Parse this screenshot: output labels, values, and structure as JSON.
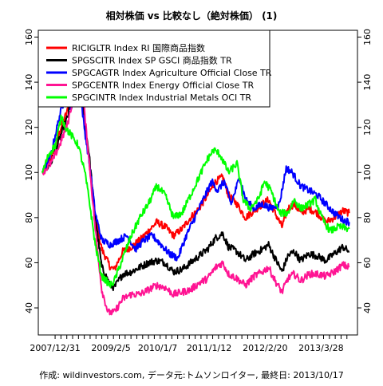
{
  "chart_data": {
    "type": "line",
    "title": "相対株価 vs 比較なし（絶対株価） (1)",
    "caption": "作成: wildinvestors.com, データ元:トムソンロイター, 最終日: 2013/10/17",
    "ylim": [
      28,
      163
    ],
    "y_ticks": [
      40,
      60,
      80,
      100,
      120,
      140,
      160
    ],
    "y_ticks_right": [
      40,
      60,
      80,
      100,
      120,
      140,
      160
    ],
    "x_tick_labels": [
      "2007/12/31",
      "2009/2/5",
      "2010/1/7",
      "2011/1/12",
      "2012/2/20",
      "2013/3/28"
    ],
    "x_range": [
      "2007-09-01",
      "2013-12-15"
    ],
    "x_tick_dates": [
      "2007-12-31",
      "2009-02-05",
      "2010-01-07",
      "2011-01-12",
      "2012-02-20",
      "2013-03-28"
    ],
    "legend_position": "top-left",
    "grid": false,
    "series": [
      {
        "name": "RICIGLTR Index RI 国際商品指数",
        "color": "#ff0000",
        "points": [
          [
            "2007-10-01",
            100
          ],
          [
            "2007-12-01",
            106
          ],
          [
            "2008-02-01",
            118
          ],
          [
            "2008-04-01",
            128
          ],
          [
            "2008-05-15",
            138
          ],
          [
            "2008-07-01",
            140
          ],
          [
            "2008-08-01",
            122
          ],
          [
            "2008-09-01",
            105
          ],
          [
            "2008-10-15",
            80
          ],
          [
            "2008-12-01",
            66
          ],
          [
            "2009-02-01",
            58
          ],
          [
            "2009-03-01",
            57
          ],
          [
            "2009-05-01",
            65
          ],
          [
            "2009-07-01",
            67
          ],
          [
            "2009-09-01",
            70
          ],
          [
            "2009-11-01",
            74
          ],
          [
            "2010-01-01",
            78
          ],
          [
            "2010-03-01",
            76
          ],
          [
            "2010-05-01",
            72
          ],
          [
            "2010-07-01",
            75
          ],
          [
            "2010-09-01",
            80
          ],
          [
            "2010-11-01",
            84
          ],
          [
            "2011-01-01",
            90
          ],
          [
            "2011-03-01",
            96
          ],
          [
            "2011-04-20",
            98
          ],
          [
            "2011-06-01",
            90
          ],
          [
            "2011-08-01",
            86
          ],
          [
            "2011-10-01",
            80
          ],
          [
            "2011-12-01",
            83
          ],
          [
            "2012-02-01",
            86
          ],
          [
            "2012-03-15",
            88
          ],
          [
            "2012-05-01",
            82
          ],
          [
            "2012-06-20",
            76
          ],
          [
            "2012-08-01",
            84
          ],
          [
            "2012-09-15",
            86
          ],
          [
            "2012-11-01",
            82
          ],
          [
            "2013-01-01",
            84
          ],
          [
            "2013-03-01",
            82
          ],
          [
            "2013-05-01",
            78
          ],
          [
            "2013-07-01",
            80
          ],
          [
            "2013-09-01",
            83
          ],
          [
            "2013-10-17",
            82
          ]
        ]
      },
      {
        "name": "SPGSCITR Index SP GSCI 商品指数 TR",
        "color": "#000000",
        "points": [
          [
            "2007-10-01",
            100
          ],
          [
            "2007-12-01",
            104
          ],
          [
            "2008-02-01",
            115
          ],
          [
            "2008-04-01",
            125
          ],
          [
            "2008-05-15",
            138
          ],
          [
            "2008-07-01",
            145
          ],
          [
            "2008-08-01",
            122
          ],
          [
            "2008-09-01",
            108
          ],
          [
            "2008-10-15",
            80
          ],
          [
            "2008-12-01",
            58
          ],
          [
            "2009-02-01",
            50
          ],
          [
            "2009-03-01",
            49
          ],
          [
            "2009-05-01",
            55
          ],
          [
            "2009-07-01",
            56
          ],
          [
            "2009-09-01",
            58
          ],
          [
            "2009-11-01",
            60
          ],
          [
            "2010-01-01",
            61
          ],
          [
            "2010-03-01",
            60
          ],
          [
            "2010-05-01",
            56
          ],
          [
            "2010-07-01",
            57
          ],
          [
            "2010-09-01",
            60
          ],
          [
            "2010-11-01",
            63
          ],
          [
            "2011-01-01",
            66
          ],
          [
            "2011-03-01",
            71
          ],
          [
            "2011-04-20",
            73
          ],
          [
            "2011-06-01",
            67
          ],
          [
            "2011-08-01",
            65
          ],
          [
            "2011-10-01",
            61
          ],
          [
            "2011-12-01",
            64
          ],
          [
            "2012-02-01",
            66
          ],
          [
            "2012-03-15",
            68
          ],
          [
            "2012-05-01",
            62
          ],
          [
            "2012-06-20",
            56
          ],
          [
            "2012-08-01",
            63
          ],
          [
            "2012-09-15",
            65
          ],
          [
            "2012-11-01",
            61
          ],
          [
            "2013-01-01",
            64
          ],
          [
            "2013-03-01",
            63
          ],
          [
            "2013-05-01",
            61
          ],
          [
            "2013-07-01",
            64
          ],
          [
            "2013-09-01",
            67
          ],
          [
            "2013-10-17",
            65
          ]
        ]
      },
      {
        "name": "SPGCAGTR Index Agriculture Official Close TR",
        "color": "#0000ff",
        "points": [
          [
            "2007-10-01",
            100
          ],
          [
            "2007-12-01",
            108
          ],
          [
            "2008-02-01",
            125
          ],
          [
            "2008-03-15",
            134
          ],
          [
            "2008-05-01",
            128
          ],
          [
            "2008-06-20",
            140
          ],
          [
            "2008-08-01",
            118
          ],
          [
            "2008-09-01",
            105
          ],
          [
            "2008-10-15",
            82
          ],
          [
            "2008-12-01",
            70
          ],
          [
            "2009-02-01",
            68
          ],
          [
            "2009-04-01",
            70
          ],
          [
            "2009-06-01",
            72
          ],
          [
            "2009-08-01",
            66
          ],
          [
            "2009-10-01",
            70
          ],
          [
            "2009-12-01",
            72
          ],
          [
            "2010-02-01",
            68
          ],
          [
            "2010-04-01",
            64
          ],
          [
            "2010-06-01",
            62
          ],
          [
            "2010-08-01",
            72
          ],
          [
            "2010-10-01",
            80
          ],
          [
            "2010-12-01",
            88
          ],
          [
            "2011-02-01",
            96
          ],
          [
            "2011-03-15",
            92
          ],
          [
            "2011-05-01",
            96
          ],
          [
            "2011-06-20",
            86
          ],
          [
            "2011-08-20",
            98
          ],
          [
            "2011-10-01",
            88
          ],
          [
            "2011-12-01",
            84
          ],
          [
            "2012-02-01",
            86
          ],
          [
            "2012-04-01",
            84
          ],
          [
            "2012-06-01",
            86
          ],
          [
            "2012-07-20",
            102
          ],
          [
            "2012-09-01",
            100
          ],
          [
            "2012-11-01",
            94
          ],
          [
            "2013-01-01",
            92
          ],
          [
            "2013-03-01",
            90
          ],
          [
            "2013-05-01",
            86
          ],
          [
            "2013-07-01",
            82
          ],
          [
            "2013-09-01",
            79
          ],
          [
            "2013-10-17",
            78
          ]
        ]
      },
      {
        "name": "SPGCENTR Index Energy Official Close TR",
        "color": "#ff1493",
        "points": [
          [
            "2007-10-01",
            100
          ],
          [
            "2007-12-01",
            104
          ],
          [
            "2008-02-01",
            112
          ],
          [
            "2008-04-01",
            122
          ],
          [
            "2008-05-15",
            135
          ],
          [
            "2008-07-01",
            150
          ],
          [
            "2008-08-01",
            125
          ],
          [
            "2008-09-01",
            105
          ],
          [
            "2008-10-15",
            75
          ],
          [
            "2008-12-01",
            48
          ],
          [
            "2009-01-15",
            38
          ],
          [
            "2009-03-01",
            38
          ],
          [
            "2009-05-01",
            44
          ],
          [
            "2009-07-01",
            46
          ],
          [
            "2009-09-01",
            46
          ],
          [
            "2009-11-01",
            48
          ],
          [
            "2010-01-01",
            50
          ],
          [
            "2010-03-01",
            49
          ],
          [
            "2010-05-01",
            46
          ],
          [
            "2010-07-01",
            47
          ],
          [
            "2010-09-01",
            48
          ],
          [
            "2010-11-01",
            51
          ],
          [
            "2011-01-01",
            53
          ],
          [
            "2011-03-01",
            58
          ],
          [
            "2011-04-20",
            60
          ],
          [
            "2011-06-01",
            55
          ],
          [
            "2011-08-01",
            53
          ],
          [
            "2011-10-01",
            50
          ],
          [
            "2011-12-01",
            54
          ],
          [
            "2012-02-01",
            56
          ],
          [
            "2012-03-15",
            58
          ],
          [
            "2012-05-01",
            52
          ],
          [
            "2012-06-20",
            47
          ],
          [
            "2012-08-01",
            53
          ],
          [
            "2012-09-15",
            55
          ],
          [
            "2012-11-01",
            52
          ],
          [
            "2013-01-01",
            55
          ],
          [
            "2013-03-01",
            55
          ],
          [
            "2013-05-01",
            54
          ],
          [
            "2013-07-01",
            56
          ],
          [
            "2013-09-01",
            59
          ],
          [
            "2013-10-17",
            58
          ]
        ]
      },
      {
        "name": "SPGCINTR Index Industrial Metals OCI TR",
        "color": "#00ff00",
        "points": [
          [
            "2007-10-01",
            100
          ],
          [
            "2007-11-15",
            108
          ],
          [
            "2008-01-01",
            112
          ],
          [
            "2008-02-15",
            125
          ],
          [
            "2008-03-15",
            120
          ],
          [
            "2008-05-01",
            116
          ],
          [
            "2008-06-15",
            112
          ],
          [
            "2008-08-01",
            100
          ],
          [
            "2008-09-01",
            88
          ],
          [
            "2008-10-15",
            68
          ],
          [
            "2008-12-01",
            54
          ],
          [
            "2009-02-01",
            50
          ],
          [
            "2009-03-01",
            52
          ],
          [
            "2009-05-01",
            62
          ],
          [
            "2009-07-01",
            72
          ],
          [
            "2009-09-01",
            80
          ],
          [
            "2009-11-01",
            86
          ],
          [
            "2010-01-01",
            94
          ],
          [
            "2010-03-01",
            90
          ],
          [
            "2010-05-01",
            80
          ],
          [
            "2010-07-01",
            82
          ],
          [
            "2010-09-01",
            90
          ],
          [
            "2010-11-01",
            98
          ],
          [
            "2011-01-01",
            106
          ],
          [
            "2011-02-15",
            110
          ],
          [
            "2011-04-01",
            108
          ],
          [
            "2011-06-01",
            100
          ],
          [
            "2011-08-01",
            104
          ],
          [
            "2011-09-15",
            88
          ],
          [
            "2011-11-01",
            84
          ],
          [
            "2012-01-01",
            88
          ],
          [
            "2012-02-15",
            96
          ],
          [
            "2012-04-01",
            92
          ],
          [
            "2012-06-01",
            82
          ],
          [
            "2012-08-01",
            82
          ],
          [
            "2012-09-15",
            88
          ],
          [
            "2012-11-01",
            84
          ],
          [
            "2013-01-01",
            86
          ],
          [
            "2013-02-15",
            88
          ],
          [
            "2013-04-01",
            80
          ],
          [
            "2013-06-01",
            74
          ],
          [
            "2013-08-01",
            76
          ],
          [
            "2013-10-17",
            75
          ]
        ]
      }
    ]
  }
}
